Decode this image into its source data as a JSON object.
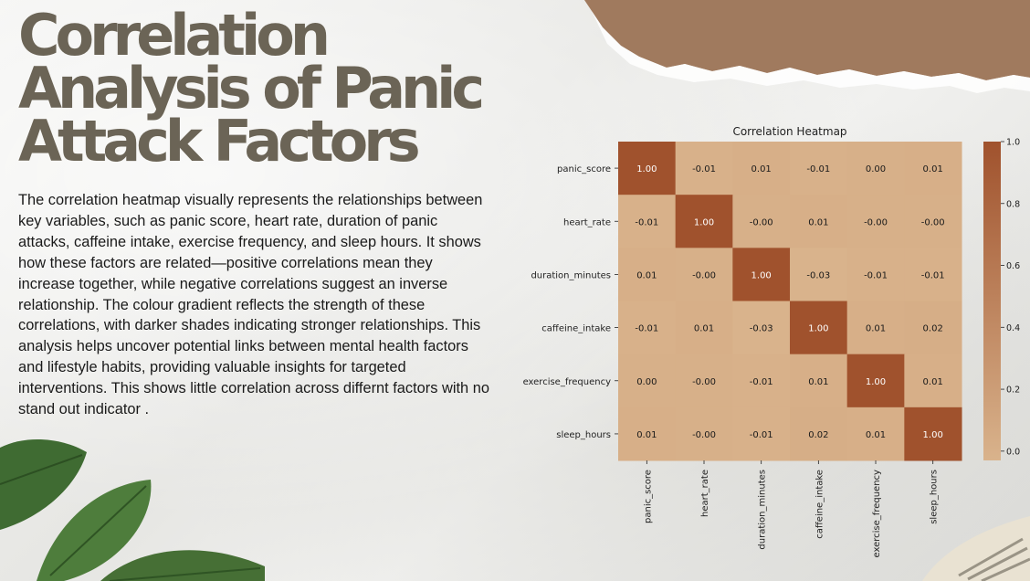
{
  "slide": {
    "title": "Correlation Analysis of Panic Attack Factors",
    "body": "The correlation heatmap visually represents the relationships between key variables, such as panic score, heart rate, duration of panic attacks, caffeine intake, exercise frequency, and sleep hours. It shows how these factors are related—positive correlations mean they increase together, while negative correlations suggest an inverse relationship. The colour gradient reflects the strength of these correlations, with darker shades indicating stronger relationships. This analysis helps uncover potential links between mental health factors and lifestyle habits, providing valuable insights for targeted interventions.  This shows little correlation across differnt factors with no stand out indicator ."
  },
  "chart_data": {
    "type": "heatmap",
    "title": "Correlation Heatmap",
    "rows": [
      "panic_score",
      "heart_rate",
      "duration_minutes",
      "caffeine_intake",
      "exercise_frequency",
      "sleep_hours"
    ],
    "columns": [
      "panic_score",
      "heart_rate",
      "duration_minutes",
      "caffeine_intake",
      "exercise_frequency",
      "sleep_hours"
    ],
    "values": [
      [
        1.0,
        -0.01,
        0.01,
        -0.01,
        0.0,
        0.01
      ],
      [
        -0.01,
        1.0,
        -0.0,
        0.01,
        -0.0,
        -0.0
      ],
      [
        0.01,
        -0.0,
        1.0,
        -0.03,
        -0.01,
        -0.01
      ],
      [
        -0.01,
        0.01,
        -0.03,
        1.0,
        0.01,
        0.02
      ],
      [
        0.0,
        -0.0,
        -0.01,
        0.01,
        1.0,
        0.01
      ],
      [
        0.01,
        -0.0,
        -0.01,
        0.02,
        0.01,
        1.0
      ]
    ],
    "cell_labels": [
      [
        "1.00",
        "-0.01",
        "0.01",
        "-0.01",
        "0.00",
        "0.01"
      ],
      [
        "-0.01",
        "1.00",
        "-0.00",
        "0.01",
        "-0.00",
        "-0.00"
      ],
      [
        "0.01",
        "-0.00",
        "1.00",
        "-0.03",
        "-0.01",
        "-0.01"
      ],
      [
        "-0.01",
        "0.01",
        "-0.03",
        "1.00",
        "0.01",
        "0.02"
      ],
      [
        "0.00",
        "-0.00",
        "-0.01",
        "0.01",
        "1.00",
        "0.01"
      ],
      [
        "0.01",
        "-0.00",
        "-0.01",
        "0.02",
        "0.01",
        "1.00"
      ]
    ],
    "colorbar": {
      "range": [
        -0.03,
        1.0
      ],
      "ticks": [
        0.0,
        0.2,
        0.4,
        0.6,
        0.8,
        1.0
      ],
      "tick_labels": [
        "0.0",
        "0.2",
        "0.4",
        "0.6",
        "0.8",
        "1.0"
      ],
      "colors": [
        "#d9b38c",
        "#a0522d"
      ]
    }
  }
}
